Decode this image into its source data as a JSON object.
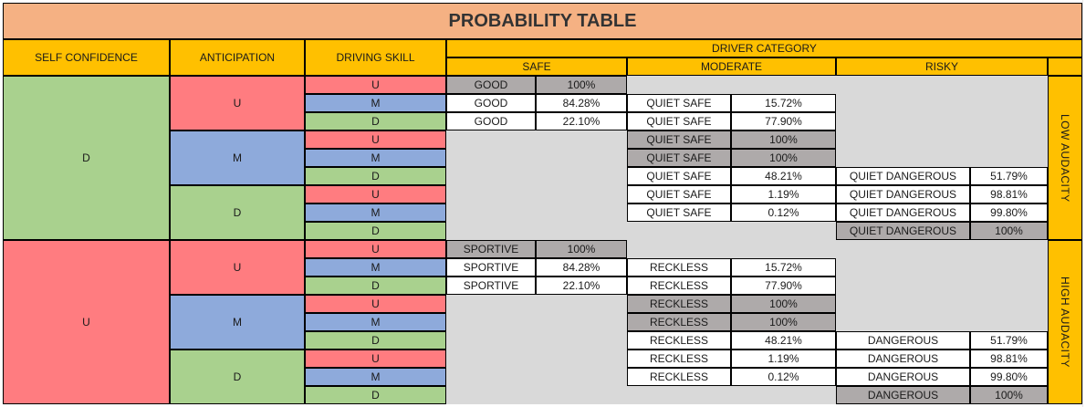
{
  "title": "PROBABILITY TABLE",
  "headers": {
    "self_confidence": "SELF CONFIDENCE",
    "anticipation": "ANTICIPATION",
    "driving_skill": "DRIVING SKILL",
    "driver_category": "DRIVER CATEGORY",
    "safe": "SAFE",
    "moderate": "MODERATE",
    "risky": "RISKY"
  },
  "side_labels": {
    "low": "LOW AUDACITY",
    "high": "HIGH AUDACITY"
  },
  "colors": {
    "title_bg": "#f5b183",
    "header_bg": "#ffc000",
    "green": "#a9d18e",
    "red": "#ff7c80",
    "blue": "#8eaadb",
    "dark_gray": "#aeaaaa",
    "light_gray": "#d9d9d9",
    "white": "#ffffff"
  },
  "groups": [
    {
      "self_confidence": "D",
      "anticipation": [
        "U",
        "M",
        "D"
      ],
      "rows": [
        {
          "skill": "U",
          "safe": [
            "GOOD",
            "100%"
          ],
          "moderate": null,
          "risky": null
        },
        {
          "skill": "M",
          "safe": [
            "GOOD",
            "84.28%"
          ],
          "moderate": [
            "QUIET SAFE",
            "15.72%"
          ],
          "risky": null
        },
        {
          "skill": "D",
          "safe": [
            "GOOD",
            "22.10%"
          ],
          "moderate": [
            "QUIET SAFE",
            "77.90%"
          ],
          "risky": null
        },
        {
          "skill": "U",
          "safe": null,
          "moderate": [
            "QUIET SAFE",
            "100%"
          ],
          "risky": null
        },
        {
          "skill": "M",
          "safe": null,
          "moderate": [
            "QUIET SAFE",
            "100%"
          ],
          "risky": null
        },
        {
          "skill": "D",
          "safe": null,
          "moderate": [
            "QUIET SAFE",
            "48.21%"
          ],
          "risky": [
            "QUIET DANGEROUS",
            "51.79%"
          ]
        },
        {
          "skill": "U",
          "safe": null,
          "moderate": [
            "QUIET SAFE",
            "1.19%"
          ],
          "risky": [
            "QUIET DANGEROUS",
            "98.81%"
          ]
        },
        {
          "skill": "M",
          "safe": null,
          "moderate": [
            "QUIET SAFE",
            "0.12%"
          ],
          "risky": [
            "QUIET DANGEROUS",
            "99.80%"
          ]
        },
        {
          "skill": "D",
          "safe": null,
          "moderate": null,
          "risky": [
            "QUIET DANGEROUS",
            "100%"
          ]
        }
      ]
    },
    {
      "self_confidence": "U",
      "anticipation": [
        "U",
        "M",
        "D"
      ],
      "rows": [
        {
          "skill": "U",
          "safe": [
            "SPORTIVE",
            "100%"
          ],
          "moderate": null,
          "risky": null
        },
        {
          "skill": "M",
          "safe": [
            "SPORTIVE",
            "84.28%"
          ],
          "moderate": [
            "RECKLESS",
            "15.72%"
          ],
          "risky": null
        },
        {
          "skill": "D",
          "safe": [
            "SPORTIVE",
            "22.10%"
          ],
          "moderate": [
            "RECKLESS",
            "77.90%"
          ],
          "risky": null
        },
        {
          "skill": "U",
          "safe": null,
          "moderate": [
            "RECKLESS",
            "100%"
          ],
          "risky": null
        },
        {
          "skill": "M",
          "safe": null,
          "moderate": [
            "RECKLESS",
            "100%"
          ],
          "risky": null
        },
        {
          "skill": "D",
          "safe": null,
          "moderate": [
            "RECKLESS",
            "48.21%"
          ],
          "risky": [
            "DANGEROUS",
            "51.79%"
          ]
        },
        {
          "skill": "U",
          "safe": null,
          "moderate": [
            "RECKLESS",
            "1.19%"
          ],
          "risky": [
            "DANGEROUS",
            "98.81%"
          ]
        },
        {
          "skill": "M",
          "safe": null,
          "moderate": [
            "RECKLESS",
            "0.12%"
          ],
          "risky": [
            "DANGEROUS",
            "99.80%"
          ]
        },
        {
          "skill": "D",
          "safe": null,
          "moderate": null,
          "risky": [
            "DANGEROUS",
            "100%"
          ]
        }
      ]
    }
  ]
}
